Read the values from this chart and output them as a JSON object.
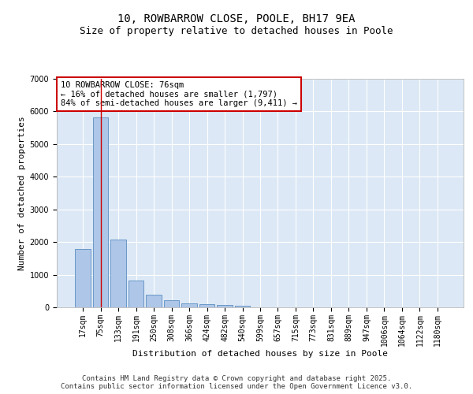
{
  "title_line1": "10, ROWBARROW CLOSE, POOLE, BH17 9EA",
  "title_line2": "Size of property relative to detached houses in Poole",
  "xlabel": "Distribution of detached houses by size in Poole",
  "ylabel": "Number of detached properties",
  "categories": [
    "17sqm",
    "75sqm",
    "133sqm",
    "191sqm",
    "250sqm",
    "308sqm",
    "366sqm",
    "424sqm",
    "482sqm",
    "540sqm",
    "599sqm",
    "657sqm",
    "715sqm",
    "773sqm",
    "831sqm",
    "889sqm",
    "947sqm",
    "1006sqm",
    "1064sqm",
    "1122sqm",
    "1180sqm"
  ],
  "values": [
    1780,
    5820,
    2080,
    820,
    380,
    220,
    110,
    90,
    70,
    50,
    0,
    0,
    0,
    0,
    0,
    0,
    0,
    0,
    0,
    0,
    0
  ],
  "bar_color": "#aec6e8",
  "bar_edge_color": "#5a8fc2",
  "vline_x": 1,
  "vline_color": "#cc0000",
  "annotation_title": "10 ROWBARROW CLOSE: 76sqm",
  "annotation_line2": "← 16% of detached houses are smaller (1,797)",
  "annotation_line3": "84% of semi-detached houses are larger (9,411) →",
  "annotation_box_facecolor": "#ffffff",
  "annotation_border_color": "#cc0000",
  "ylim": [
    0,
    7000
  ],
  "yticks": [
    0,
    1000,
    2000,
    3000,
    4000,
    5000,
    6000,
    7000
  ],
  "background_color": "#dce8f5",
  "grid_color": "#ffffff",
  "fig_background": "#ffffff",
  "footer_line1": "Contains HM Land Registry data © Crown copyright and database right 2025.",
  "footer_line2": "Contains public sector information licensed under the Open Government Licence v3.0.",
  "title_fontsize": 10,
  "subtitle_fontsize": 9,
  "axis_label_fontsize": 8,
  "tick_fontsize": 7,
  "annotation_fontsize": 7.5,
  "footer_fontsize": 6.5
}
